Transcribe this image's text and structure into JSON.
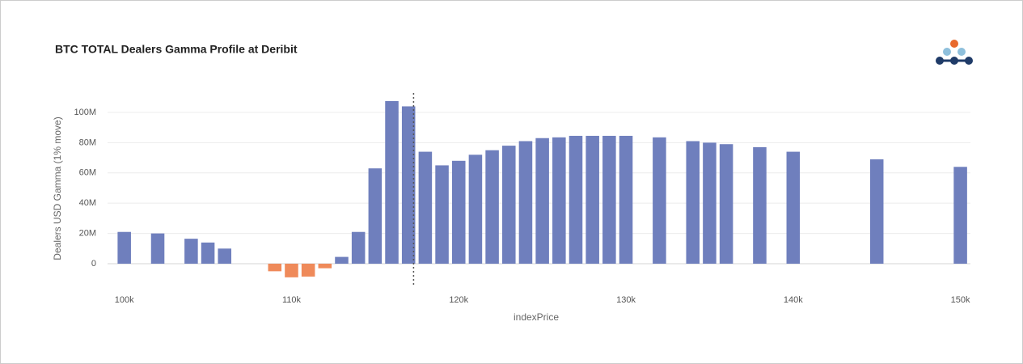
{
  "chart_data": {
    "type": "bar",
    "title": "BTC TOTAL Dealers Gamma Profile at Deribit",
    "x_label": "indexPrice",
    "y_label": "Dealers USD Gamma (1% move)",
    "x": [
      100000,
      102000,
      104000,
      105000,
      106000,
      109000,
      110000,
      111000,
      112000,
      113000,
      114000,
      115000,
      116000,
      117000,
      118000,
      119000,
      120000,
      121000,
      122000,
      123000,
      124000,
      125000,
      126000,
      127000,
      128000,
      129000,
      130000,
      132000,
      134000,
      135000,
      136000,
      138000,
      140000,
      145000,
      150000
    ],
    "values": [
      21000000,
      20000000,
      16500000,
      14000000,
      10000000,
      -5000000,
      -9000000,
      -8500000,
      -3000000,
      4500000,
      21000000,
      63000000,
      107500000,
      104000000,
      74000000,
      65000000,
      68000000,
      72000000,
      75000000,
      78000000,
      81000000,
      83000000,
      83500000,
      84500000,
      84500000,
      84500000,
      84500000,
      83500000,
      81000000,
      80000000,
      79000000,
      77000000,
      74000000,
      69000000,
      64000000
    ],
    "positive_color": "#6f7fbd",
    "negative_color": "#ef8a5a",
    "spot": 117300,
    "xlim": [
      99000,
      150600
    ],
    "xticks": [
      {
        "value": 100000,
        "label": "100k"
      },
      {
        "value": 110000,
        "label": "110k"
      },
      {
        "value": 120000,
        "label": "120k"
      },
      {
        "value": 130000,
        "label": "130k"
      },
      {
        "value": 140000,
        "label": "140k"
      },
      {
        "value": 150000,
        "label": "150k"
      }
    ],
    "ylim": [
      -15500000,
      112800000
    ],
    "yticks": [
      0,
      {
        "value": 20000000,
        "label": "20M"
      },
      {
        "value": 40000000,
        "label": "40M"
      },
      {
        "value": 60000000,
        "label": "60M"
      },
      {
        "value": 80000000,
        "label": "80M"
      },
      {
        "value": 100000000,
        "label": "100M"
      }
    ],
    "grid": true
  }
}
